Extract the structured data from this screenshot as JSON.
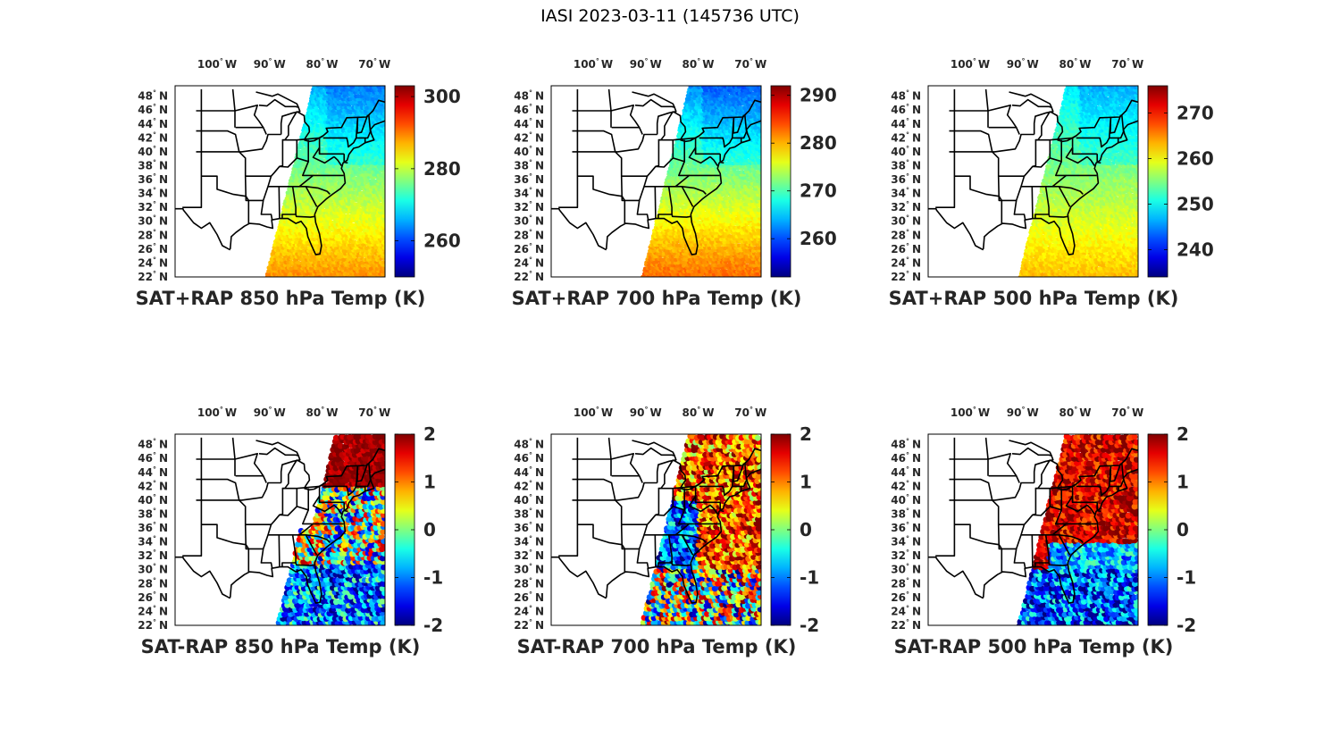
{
  "title": "IASI 2023-03-11 (145736 UTC)",
  "lon_ticks": [
    {
      "value": "100",
      "dir": "W"
    },
    {
      "value": "90",
      "dir": "W"
    },
    {
      "value": "80",
      "dir": "W"
    },
    {
      "value": "70",
      "dir": "W"
    }
  ],
  "lat_ticks": [
    {
      "value": "48",
      "dir": "N"
    },
    {
      "value": "46",
      "dir": "N"
    },
    {
      "value": "44",
      "dir": "N"
    },
    {
      "value": "42",
      "dir": "N"
    },
    {
      "value": "40",
      "dir": "N"
    },
    {
      "value": "38",
      "dir": "N"
    },
    {
      "value": "36",
      "dir": "N"
    },
    {
      "value": "34",
      "dir": "N"
    },
    {
      "value": "32",
      "dir": "N"
    },
    {
      "value": "30",
      "dir": "N"
    },
    {
      "value": "28",
      "dir": "N"
    },
    {
      "value": "26",
      "dir": "N"
    },
    {
      "value": "24",
      "dir": "N"
    },
    {
      "value": "22",
      "dir": "N"
    }
  ],
  "map_extent": {
    "lon": [
      -108,
      -68
    ],
    "lat": [
      22,
      49.5
    ]
  },
  "colormap": "jet",
  "panels": [
    {
      "title": "SAT+RAP 850 hPa Temp (K)",
      "kind": "field",
      "clim": [
        250,
        303
      ],
      "ticks": [
        "300",
        "280",
        "260"
      ],
      "tick_values": [
        300,
        280,
        260
      ],
      "north_value": 266,
      "south_value": 289
    },
    {
      "title": "SAT+RAP 700 hPa Temp (K)",
      "kind": "field",
      "clim": [
        252,
        292
      ],
      "ticks": [
        "290",
        "280",
        "270",
        "260"
      ],
      "tick_values": [
        290,
        280,
        270,
        260
      ],
      "north_value": 263,
      "south_value": 283
    },
    {
      "title": "SAT+RAP 500 hPa Temp (K)",
      "kind": "field",
      "clim": [
        234,
        276
      ],
      "ticks": [
        "270",
        "260",
        "250",
        "240"
      ],
      "tick_values": [
        270,
        260,
        250,
        240
      ],
      "north_value": 249,
      "south_value": 263
    },
    {
      "title": "SAT-RAP 850 hPa Temp (K)",
      "kind": "diff",
      "clim": [
        -2,
        2
      ],
      "ticks": [
        "2",
        "1",
        "0",
        "-1",
        "-2"
      ],
      "tick_values": [
        2,
        1,
        0,
        -1,
        -2
      ]
    },
    {
      "title": "SAT-RAP 700 hPa Temp (K)",
      "kind": "diff",
      "clim": [
        -2,
        2
      ],
      "ticks": [
        "2",
        "1",
        "0",
        "-1",
        "-2"
      ],
      "tick_values": [
        2,
        1,
        0,
        -1,
        -2
      ]
    },
    {
      "title": "SAT-RAP 500 hPa Temp (K)",
      "kind": "diff",
      "clim": [
        -2,
        2
      ],
      "ticks": [
        "2",
        "1",
        "0",
        "-1",
        "-2"
      ],
      "tick_values": [
        2,
        1,
        0,
        -1,
        -2
      ]
    }
  ]
}
